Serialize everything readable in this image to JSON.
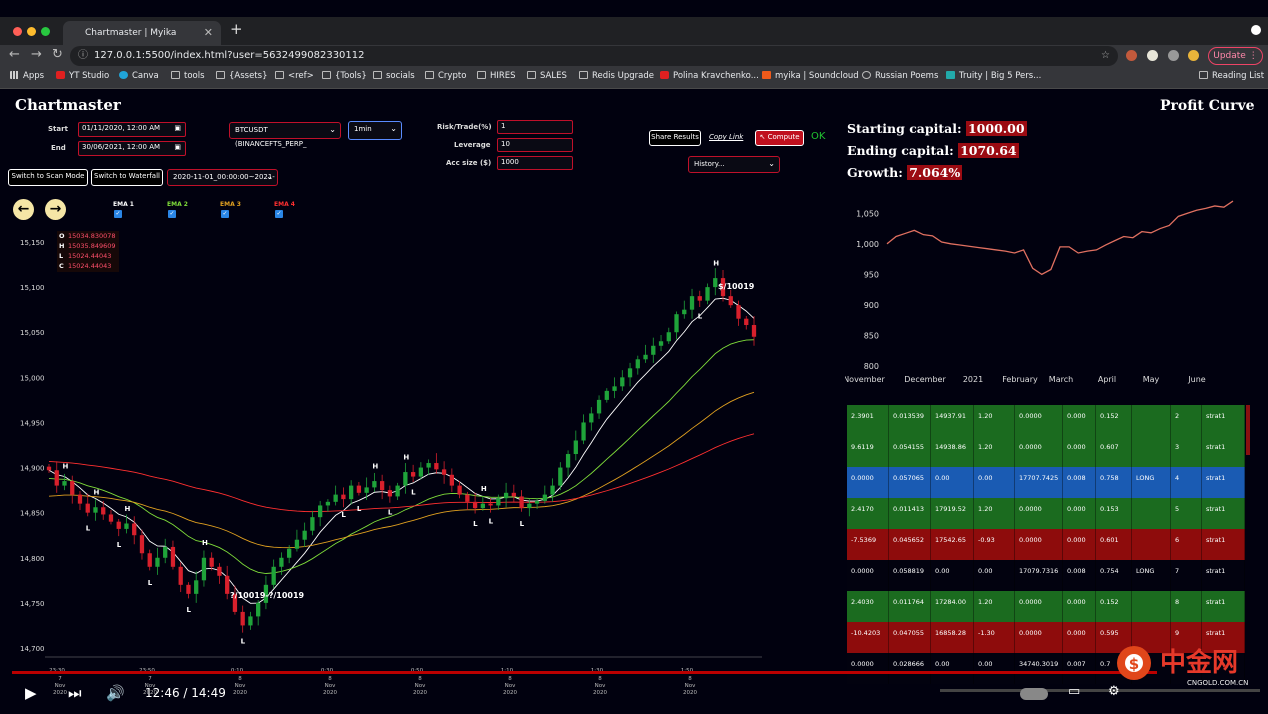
{
  "browser": {
    "tab_title": "Chartmaster | Myika",
    "url": "127.0.0.1:5500/index.html?user=5632499082330112",
    "update_label": "Update",
    "bookmarks": [
      "Apps",
      "YT Studio",
      "Canva",
      "tools",
      "{Assets}",
      "<ref>",
      "{Tools}",
      "socials",
      "Crypto",
      "HIRES",
      "SALES",
      "Redis Upgrade",
      "Polina Kravchenko...",
      "myika | Soundcloud",
      "Russian Poems",
      "Truity | Big 5 Pers..."
    ],
    "reading_list": "Reading List"
  },
  "app": {
    "title": "Chartmaster",
    "start_label": "Start",
    "start_value": "01/11/2020, 12:00 AM",
    "end_label": "End",
    "end_value": "30/06/2021, 12:00 AM",
    "symbol": "BTCUSDT (BINANCEFTS_PERP_",
    "interval": "1min",
    "risk_label": "Risk/Trade(%)",
    "risk_value": "1",
    "leverage_label": "Leverage",
    "leverage_value": "10",
    "acc_label": "Acc size ($)",
    "acc_value": "1000",
    "share_label": "Share Results",
    "copy_label": "Copy Link",
    "compute_label": "↖ Compute",
    "ok_label": "OK",
    "history_label": "History...",
    "scan_label": "Switch to Scan Mode",
    "waterfall_label": "Switch to Waterfall",
    "range_select": "2020-11-01_00:00:00~2021-",
    "emas": [
      {
        "label": "EMA 1",
        "color": "#ffffff"
      },
      {
        "label": "EMA 2",
        "color": "#7fdc3a"
      },
      {
        "label": "EMA 3",
        "color": "#e0a020"
      },
      {
        "label": "EMA 4",
        "color": "#ff3030"
      }
    ],
    "ohlc": {
      "O": "15034.830078",
      "H": "15035.849609",
      "L": "15024.44043",
      "C": "15024.44043"
    }
  },
  "chart_data": [
    {
      "type": "line",
      "title": "",
      "y_ticks": [
        "15,150",
        "15,100",
        "15,050",
        "15,000",
        "14,950",
        "14,900",
        "14,850",
        "14,800",
        "14,750",
        "14,700"
      ],
      "ylim": [
        14690,
        15160
      ],
      "x_ticks": [
        {
          "time": "23:30",
          "date": "7",
          "mon": "Nov",
          "yr": "2020"
        },
        {
          "time": "23:50",
          "date": "7",
          "mon": "Nov",
          "yr": "2020"
        },
        {
          "time": "0:10",
          "date": "8",
          "mon": "Nov",
          "yr": "2020"
        },
        {
          "time": "0:30",
          "date": "8",
          "mon": "Nov",
          "yr": "2020"
        },
        {
          "time": "0:50",
          "date": "8",
          "mon": "Nov",
          "yr": "2020"
        },
        {
          "time": "1:10",
          "date": "8",
          "mon": "Nov",
          "yr": "2020"
        },
        {
          "time": "1:30",
          "date": "8",
          "mon": "Nov",
          "yr": "2020"
        },
        {
          "time": "1:50",
          "date": "8",
          "mon": "Nov",
          "yr": "2020"
        }
      ],
      "annotations": [
        "$/10019",
        "$/10019",
        "?/10019",
        "?/10019"
      ],
      "candle_closes": [
        14897,
        14880,
        14885,
        14870,
        14860,
        14850,
        14856,
        14848,
        14840,
        14832,
        14838,
        14825,
        14805,
        14790,
        14800,
        14812,
        14790,
        14770,
        14760,
        14775,
        14800,
        14790,
        14780,
        14760,
        14740,
        14725,
        14735,
        14750,
        14770,
        14790,
        14800,
        14810,
        14820,
        14830,
        14845,
        14858,
        14862,
        14870,
        14865,
        14880,
        14872,
        14878,
        14885,
        14875,
        14868,
        14880,
        14895,
        14890,
        14900,
        14905,
        14898,
        14892,
        14880,
        14870,
        14862,
        14855,
        14860,
        14858,
        14866,
        14872,
        14868,
        14855,
        14860,
        14863,
        14870,
        14880,
        14900,
        14915,
        14930,
        14950,
        14960,
        14975,
        14985,
        14990,
        15000,
        15010,
        15020,
        15025,
        15035,
        15040,
        15050,
        15070,
        15075,
        15090,
        15085,
        15100,
        15110,
        15090,
        15080,
        15065,
        15058,
        15045
      ]
    },
    {
      "type": "line",
      "title": "Profit Curve",
      "y_ticks": [
        "1,050",
        "1,000",
        "950",
        "900",
        "850",
        "800"
      ],
      "ylim": [
        800,
        1075
      ],
      "x_ticks": [
        "November",
        "December",
        "2021",
        "February",
        "March",
        "April",
        "May",
        "June"
      ],
      "values": [
        1000,
        1012,
        1017,
        1022,
        1015,
        1013,
        1003,
        1000,
        998,
        996,
        994,
        992,
        990,
        988,
        985,
        990,
        960,
        950,
        958,
        995,
        995,
        985,
        988,
        990,
        998,
        1005,
        1012,
        1010,
        1020,
        1018,
        1025,
        1030,
        1045,
        1050,
        1055,
        1058,
        1062,
        1060,
        1070
      ]
    }
  ],
  "profit": {
    "starting_label": "Starting capital:",
    "starting": "1000.00",
    "ending_label": "Ending capital:",
    "ending": "1070.64",
    "growth_label": "Growth:",
    "growth": "7.064%"
  },
  "trades": [
    {
      "c": [
        "2.3901",
        "0.013539",
        "14937.91",
        "1.20",
        "0.0000",
        "0.000",
        "0.152",
        "",
        "2",
        "strat1"
      ],
      "color": "#1b6b1f"
    },
    {
      "c": [
        "9.6119",
        "0.054155",
        "14938.86",
        "1.20",
        "0.0000",
        "0.000",
        "0.607",
        "",
        "3",
        "strat1"
      ],
      "color": "#1b6b1f"
    },
    {
      "c": [
        "0.0000",
        "0.057065",
        "0.00",
        "0.00",
        "17707.7425",
        "0.008",
        "0.758",
        "LONG",
        "4",
        "strat1"
      ],
      "color": "#1a5bb3"
    },
    {
      "c": [
        "2.4170",
        "0.011413",
        "17919.52",
        "1.20",
        "0.0000",
        "0.000",
        "0.153",
        "",
        "5",
        "strat1"
      ],
      "color": "#1b6b1f"
    },
    {
      "c": [
        "-7.5369",
        "0.045652",
        "17542.65",
        "-0.93",
        "0.0000",
        "0.000",
        "0.601",
        "",
        "6",
        "strat1"
      ],
      "color": "#8e0c0c"
    },
    {
      "c": [
        "0.0000",
        "0.058819",
        "0.00",
        "0.00",
        "17079.7316",
        "0.008",
        "0.754",
        "LONG",
        "7",
        "strat1"
      ],
      "color": "#02020f"
    },
    {
      "c": [
        "2.4030",
        "0.011764",
        "17284.00",
        "1.20",
        "0.0000",
        "0.000",
        "0.152",
        "",
        "8",
        "strat1"
      ],
      "color": "#1b6b1f"
    },
    {
      "c": [
        "-10.4203",
        "0.047055",
        "16858.28",
        "-1.30",
        "0.0000",
        "0.000",
        "0.595",
        "",
        "9",
        "strat1"
      ],
      "color": "#8e0c0c"
    },
    {
      "c": [
        "0.0000",
        "0.028666",
        "0.00",
        "0.00",
        "34740.3019",
        "0.007",
        "0.7",
        "",
        "",
        ""
      ],
      "color": "#02020f"
    }
  ],
  "video": {
    "time": "12:46 / 14:49",
    "watermark": "中金网",
    "watermark_sub": "CNGOLD.COM.CN"
  }
}
